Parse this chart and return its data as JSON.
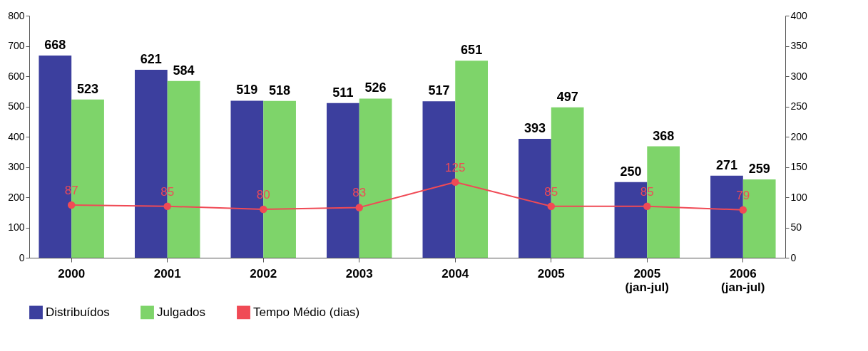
{
  "chart_data": {
    "type": "bar",
    "categories": [
      "2000",
      "2001",
      "2002",
      "2003",
      "2004",
      "2005",
      "2005 (jan-jul)",
      "2006 (jan-jul)"
    ],
    "series": [
      {
        "name": "Distribuídos",
        "color": "#3c3f9e",
        "values": [
          668,
          621,
          519,
          511,
          517,
          393,
          250,
          271
        ]
      },
      {
        "name": "Julgados",
        "color": "#7ed46a",
        "values": [
          523,
          584,
          518,
          526,
          651,
          497,
          368,
          259
        ]
      },
      {
        "name": "Tempo Médio (dias)",
        "type": "line",
        "axis": "y2",
        "color": "#f04a55",
        "values": [
          87,
          85,
          80,
          83,
          125,
          85,
          85,
          79
        ]
      }
    ],
    "ylim": [
      0,
      800
    ],
    "yticks": [
      0,
      100,
      200,
      300,
      400,
      500,
      600,
      700,
      800
    ],
    "y2lim": [
      0,
      400
    ],
    "y2ticks": [
      0,
      50,
      100,
      150,
      200,
      250,
      300,
      350,
      400
    ],
    "data_labels": true,
    "grid": false,
    "legend": "bottom",
    "marker": "circle"
  }
}
